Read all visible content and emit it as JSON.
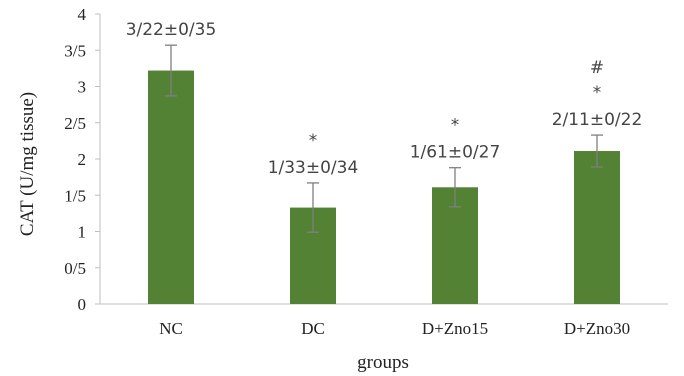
{
  "chart_data": {
    "type": "bar",
    "xlabel": "groups",
    "ylabel": "CAT (U/mg tissue)",
    "ylim": [
      0,
      4
    ],
    "yticks": [
      0,
      0.5,
      1,
      1.5,
      2,
      2.5,
      3,
      3.5,
      4
    ],
    "ytick_labels": [
      "0",
      "0/5",
      "1",
      "1/5",
      "2",
      "2/5",
      "3",
      "3/5",
      "4"
    ],
    "grid": false,
    "legend": "none",
    "bar_color": "#548235",
    "categories": [
      "NC",
      "DC",
      "D+Zno15",
      "D+Zno30"
    ],
    "values": [
      3.22,
      1.33,
      1.61,
      2.11
    ],
    "errors": [
      0.35,
      0.34,
      0.27,
      0.22
    ],
    "data_labels": [
      "3/22±0/35",
      "1/33±0/34",
      "1/61±0/27",
      "2/11±0/22"
    ],
    "significance": [
      [],
      [
        "*"
      ],
      [
        "*"
      ],
      [
        "#",
        "*"
      ]
    ]
  }
}
